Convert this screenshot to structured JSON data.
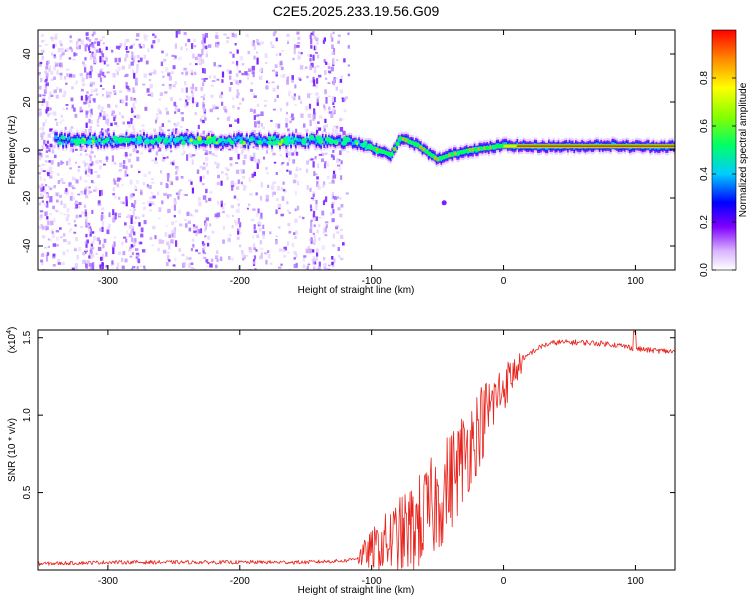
{
  "title": "C2E5.2025.233.19.56.G09",
  "chart_data": [
    {
      "type": "heatmap",
      "name": "spectrogram",
      "xlabel": "Height of straight line (km)",
      "ylabel": "Frequency (Hz)",
      "xlim": [
        -353,
        130
      ],
      "ylim": [
        -50,
        50
      ],
      "xticks": [
        -300,
        -200,
        -100,
        0,
        100
      ],
      "xtick_labels": [
        "-300",
        "-200",
        "-100",
        "0",
        "100"
      ],
      "yticks": [
        -40,
        -20,
        0,
        20,
        40
      ],
      "ytick_labels": [
        "-40",
        "-20",
        "0",
        "20",
        "40"
      ],
      "ridge": {
        "x": [
          -340,
          -300,
          -250,
          -200,
          -150,
          -120,
          -100,
          -85,
          -78,
          -65,
          -50,
          -40,
          -25,
          -10,
          0,
          20,
          50,
          80,
          95,
          130
        ],
        "y": [
          4,
          4,
          4,
          4,
          4,
          4,
          1,
          -2,
          5,
          2,
          -4,
          -2,
          0,
          1,
          2,
          1.5,
          1.5,
          2,
          1.5,
          1.5
        ]
      },
      "scatter_note": "noise speckle spans heights -353 to -125 km"
    },
    {
      "type": "colorbar",
      "name": "amplitude-colorbar",
      "label": "Normalized spectral amplitude",
      "range": [
        0,
        1
      ],
      "ticks": [
        0.0,
        0.2,
        0.4,
        0.6,
        0.8
      ],
      "tick_labels": [
        "0.0",
        "0.2",
        "0.4",
        "0.6",
        "0.8"
      ]
    },
    {
      "type": "line",
      "name": "snr",
      "color": "#e8231c",
      "xlabel": "Height of straight line (km)",
      "ylabel": "SNR (10 * v/v)",
      "scale_label": "(x10",
      "scale_exp": "4",
      "scale_close": ")",
      "xlim": [
        -353,
        130
      ],
      "ylim": [
        0,
        1.55
      ],
      "xticks": [
        -300,
        -200,
        -100,
        0,
        100
      ],
      "xtick_labels": [
        "-300",
        "-200",
        "-100",
        "0",
        "100"
      ],
      "yticks": [
        0.5,
        1.0,
        1.5
      ],
      "ytick_labels": [
        "0.5",
        "1.0",
        "1.5"
      ],
      "envelope_x": [
        -353,
        -300,
        -250,
        -200,
        -150,
        -120,
        -110,
        -100,
        -90,
        -80,
        -70,
        -60,
        -50,
        -40,
        -30,
        -20,
        -10,
        0,
        10,
        20,
        30,
        40,
        60,
        80,
        95,
        100,
        110,
        130
      ],
      "envelope_y": [
        0.04,
        0.05,
        0.05,
        0.05,
        0.05,
        0.06,
        0.08,
        0.13,
        0.17,
        0.21,
        0.26,
        0.34,
        0.44,
        0.58,
        0.74,
        0.9,
        1.05,
        1.18,
        1.3,
        1.4,
        1.45,
        1.47,
        1.47,
        1.46,
        1.44,
        1.43,
        1.42,
        1.41
      ]
    }
  ]
}
